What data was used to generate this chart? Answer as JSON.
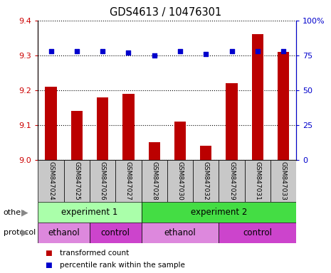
{
  "title": "GDS4613 / 10476301",
  "samples": [
    "GSM847024",
    "GSM847025",
    "GSM847026",
    "GSM847027",
    "GSM847028",
    "GSM847030",
    "GSM847032",
    "GSM847029",
    "GSM847031",
    "GSM847033"
  ],
  "red_values": [
    9.21,
    9.14,
    9.18,
    9.19,
    9.05,
    9.11,
    9.04,
    9.22,
    9.36,
    9.31
  ],
  "blue_values": [
    78,
    78,
    78,
    77,
    75,
    78,
    76,
    78,
    78,
    78
  ],
  "ylim_left": [
    9.0,
    9.4
  ],
  "ylim_right": [
    0,
    100
  ],
  "yticks_left": [
    9.0,
    9.1,
    9.2,
    9.3,
    9.4
  ],
  "yticks_right": [
    0,
    25,
    50,
    75,
    100
  ],
  "ytick_labels_right": [
    "0",
    "25",
    "50",
    "75",
    "100%"
  ],
  "bar_color": "#bb0000",
  "dot_color": "#0000cc",
  "grid_color": "#000000",
  "experiment_groups": [
    {
      "label": "experiment 1",
      "start": 0,
      "end": 4,
      "color": "#aaffaa"
    },
    {
      "label": "experiment 2",
      "start": 4,
      "end": 10,
      "color": "#44dd44"
    }
  ],
  "protocol_groups": [
    {
      "label": "ethanol",
      "start": 0,
      "end": 2,
      "color": "#dd88dd"
    },
    {
      "label": "control",
      "start": 2,
      "end": 4,
      "color": "#cc44cc"
    },
    {
      "label": "ethanol",
      "start": 4,
      "end": 7,
      "color": "#dd88dd"
    },
    {
      "label": "control",
      "start": 7,
      "end": 10,
      "color": "#cc44cc"
    }
  ],
  "legend_items": [
    {
      "label": "transformed count",
      "color": "#bb0000"
    },
    {
      "label": "percentile rank within the sample",
      "color": "#0000cc"
    }
  ],
  "bar_width": 0.45,
  "background_color": "#ffffff",
  "tick_color_left": "#cc0000",
  "tick_color_right": "#0000cc",
  "sample_box_color": "#c8c8c8",
  "arrow_color": "#888888"
}
